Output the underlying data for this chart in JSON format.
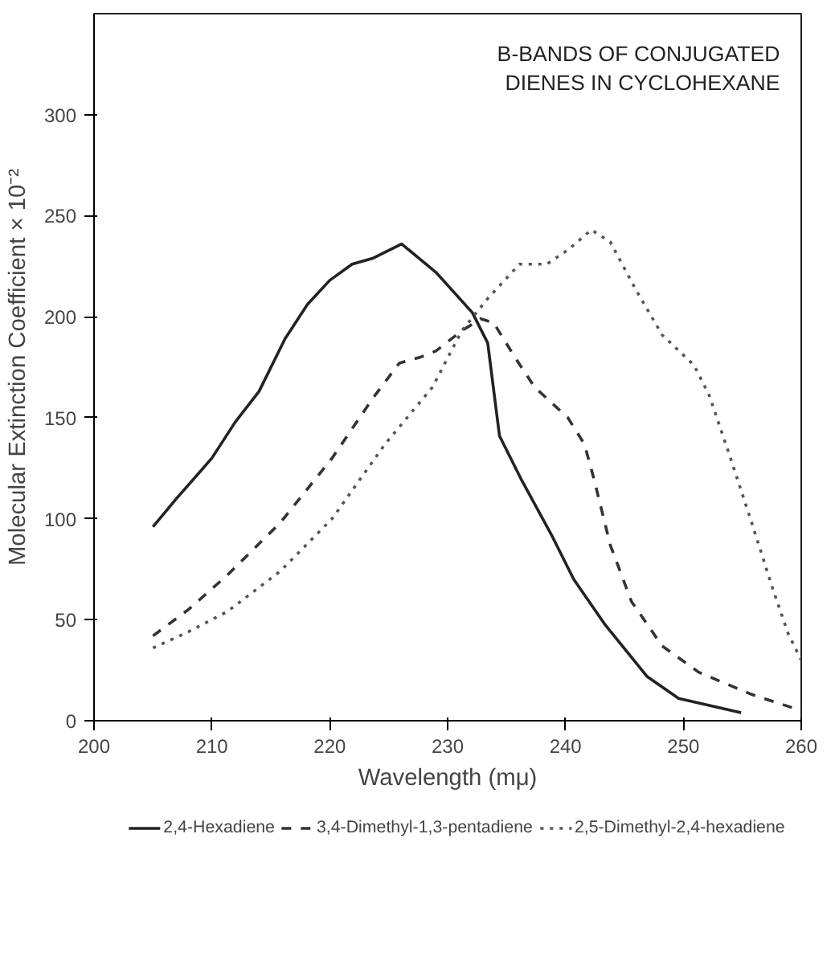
{
  "chart_data": {
    "type": "line",
    "title": "B-BANDS OF CONJUGATED\nDIENES IN CYCLOHEXANE",
    "xlabel": "Wavelength (mμ)",
    "ylabel": "Molecular Extinction Coefficient × 10⁻²",
    "xlim": [
      200,
      260
    ],
    "xticks": [
      200,
      210,
      220,
      230,
      240,
      250,
      260
    ],
    "ylim": [
      0,
      350
    ],
    "yticks": [
      0,
      50,
      100,
      150,
      200,
      250,
      300
    ],
    "grid": false,
    "legend": "bottom",
    "series": [
      {
        "name": "2,4-Hexadiene",
        "color": "#222222",
        "line_style": "solid",
        "x": [
          205,
          207,
          210,
          212,
          214,
          216.2,
          218.1,
          220,
          221.9,
          223.7,
          226.1,
          229,
          232.1,
          233.4,
          234.4,
          236.2,
          238.9,
          240.7,
          243.3,
          246.9,
          249.6,
          254.9
        ],
        "values": [
          96,
          110,
          130,
          148,
          163,
          189,
          206,
          218,
          226,
          229,
          236,
          222,
          202,
          187,
          141,
          120,
          91,
          70,
          48,
          22,
          11,
          4
        ]
      },
      {
        "name": "3,4-Dimethyl-1,3-pentadiene",
        "color": "#333333",
        "line_style": "dashed",
        "x": [
          205,
          208,
          211.3,
          215.8,
          220.2,
          223.7,
          225.9,
          227.7,
          229,
          231.2,
          232.8,
          233.9,
          235.7,
          237.4,
          240.2,
          241.6,
          242.4,
          243.8,
          245.6,
          248.2,
          251.3,
          255.8,
          260
        ],
        "values": [
          42,
          55,
          72,
          98,
          130,
          160,
          177,
          180,
          183,
          193,
          199,
          197,
          180,
          165,
          150,
          137,
          120,
          87,
          59,
          37,
          24,
          13,
          5
        ]
      },
      {
        "name": "2,5-Dimethyl-2,4-hexadiene",
        "color": "#555555",
        "line_style": "dotted",
        "x": [
          205,
          208,
          211.3,
          215.8,
          220.2,
          224.7,
          228.7,
          231.2,
          233.4,
          236.1,
          238.4,
          240.2,
          242.2,
          243.8,
          246,
          248.2,
          250.9,
          252.2,
          254,
          255.8,
          257.6,
          258.9,
          260
        ],
        "values": [
          36,
          44,
          54,
          74,
          100,
          137,
          165,
          193,
          209,
          226,
          226,
          233,
          243,
          237,
          213,
          191,
          176,
          161,
          130,
          98,
          65,
          43,
          30
        ]
      }
    ]
  }
}
